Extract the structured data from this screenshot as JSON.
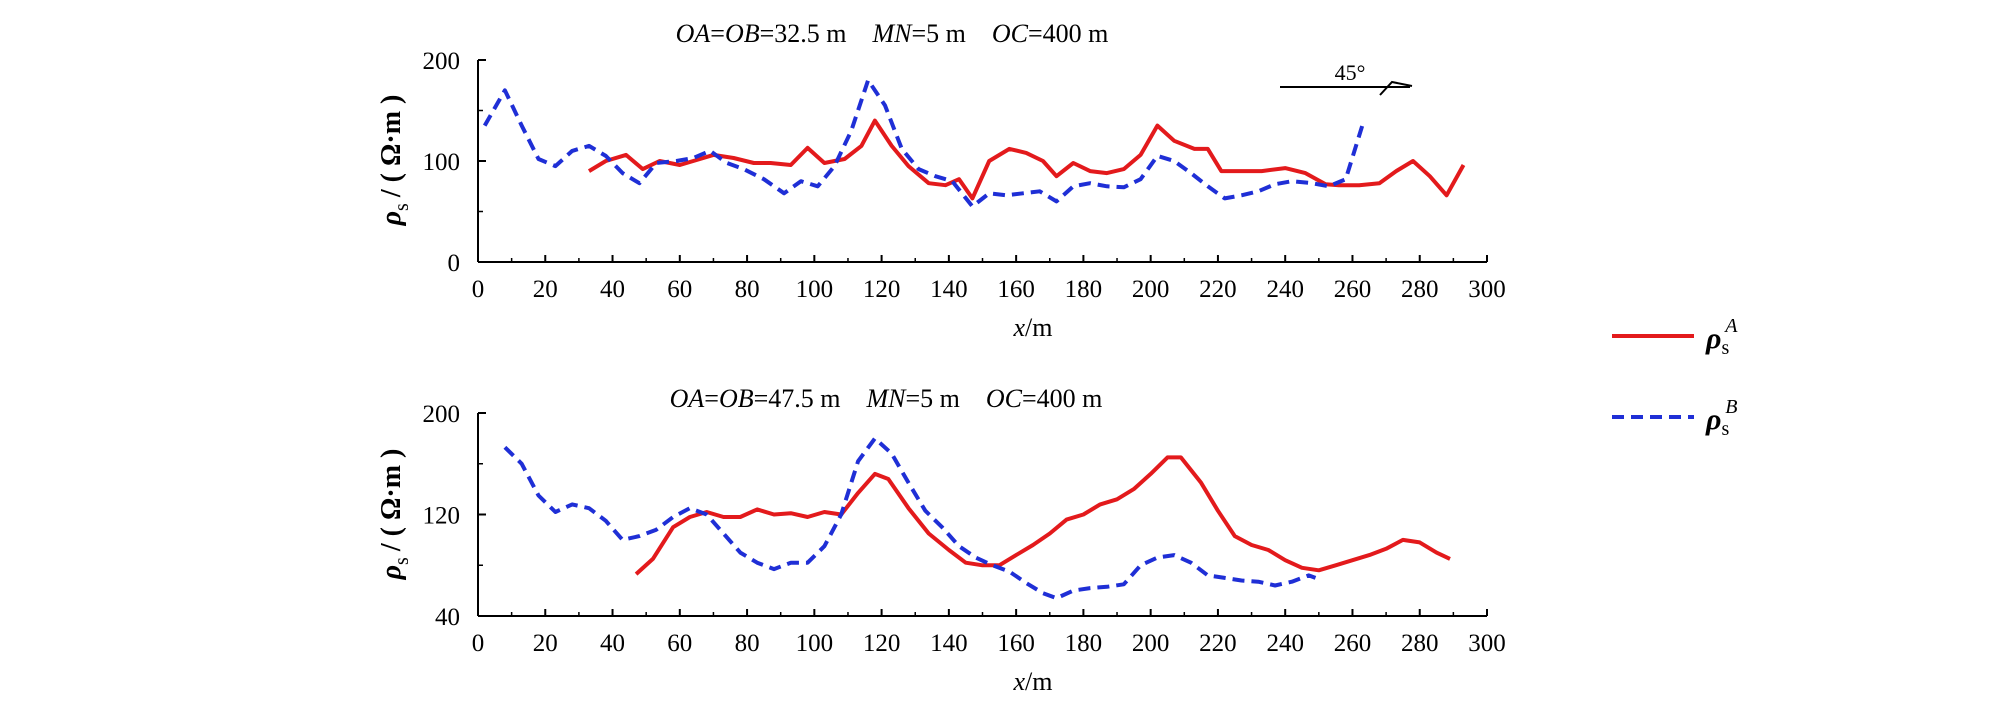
{
  "colors": {
    "A": "#e31a1c",
    "B": "#1f2fd6"
  },
  "legend": {
    "a_symbol": "ρ",
    "a_sub": "s",
    "a_sup": "A",
    "b_symbol": "ρ",
    "b_sub": "s",
    "b_sup": "B"
  },
  "compass": {
    "label": "45°"
  },
  "chart_data": [
    {
      "type": "line",
      "title_parts": {
        "oa": "OA",
        "eq1": "=",
        "ob": "OB",
        "eq2": "=32.5 m",
        "mn": "MN",
        "eq3": "=5 m",
        "oc": "OC",
        "eq4": "=400 m"
      },
      "xlabel_var": "x",
      "xlabel_unit": "/m",
      "ylabel": "ρs / ( Ω·m )",
      "ylabel_parts": {
        "rho": "ρ",
        "sub": "s",
        "unit": "/ ( Ω·m )"
      },
      "xlim": [
        0,
        300
      ],
      "ylim": [
        0,
        200
      ],
      "xticks": [
        0,
        20,
        40,
        60,
        80,
        100,
        120,
        140,
        160,
        180,
        200,
        220,
        240,
        260,
        280,
        300
      ],
      "yticks": [
        0,
        100,
        200
      ],
      "series": [
        {
          "key": "A",
          "style": "solid",
          "points": [
            [
              33,
              90
            ],
            [
              38,
              100
            ],
            [
              44,
              106
            ],
            [
              49,
              92
            ],
            [
              54,
              100
            ],
            [
              60,
              96
            ],
            [
              65,
              101
            ],
            [
              70,
              106
            ],
            [
              76,
              103
            ],
            [
              82,
              98
            ],
            [
              87,
              98
            ],
            [
              93,
              96
            ],
            [
              98,
              113
            ],
            [
              103,
              98
            ],
            [
              109,
              102
            ],
            [
              114,
              115
            ],
            [
              118,
              140
            ],
            [
              123,
              115
            ],
            [
              128,
              95
            ],
            [
              134,
              78
            ],
            [
              139,
              76
            ],
            [
              143,
              82
            ],
            [
              147,
              63
            ],
            [
              152,
              100
            ],
            [
              158,
              112
            ],
            [
              163,
              108
            ],
            [
              168,
              100
            ],
            [
              172,
              85
            ],
            [
              177,
              98
            ],
            [
              182,
              90
            ],
            [
              187,
              88
            ],
            [
              192,
              92
            ],
            [
              197,
              106
            ],
            [
              202,
              135
            ],
            [
              207,
              120
            ],
            [
              213,
              112
            ],
            [
              217,
              112
            ],
            [
              221,
              90
            ],
            [
              226,
              90
            ],
            [
              233,
              90
            ],
            [
              240,
              93
            ],
            [
              246,
              88
            ],
            [
              252,
              77
            ],
            [
              256,
              76
            ],
            [
              262,
              76
            ],
            [
              268,
              78
            ],
            [
              273,
              90
            ],
            [
              278,
              100
            ],
            [
              283,
              85
            ],
            [
              288,
              66
            ],
            [
              293,
              96
            ]
          ]
        },
        {
          "key": "B",
          "style": "dashed",
          "points": [
            [
              2,
              135
            ],
            [
              8,
              170
            ],
            [
              13,
              135
            ],
            [
              18,
              102
            ],
            [
              23,
              95
            ],
            [
              28,
              110
            ],
            [
              33,
              115
            ],
            [
              38,
              105
            ],
            [
              43,
              88
            ],
            [
              48,
              78
            ],
            [
              53,
              98
            ],
            [
              59,
              100
            ],
            [
              64,
              103
            ],
            [
              69,
              110
            ],
            [
              74,
              98
            ],
            [
              79,
              92
            ],
            [
              85,
              82
            ],
            [
              91,
              68
            ],
            [
              96,
              80
            ],
            [
              101,
              75
            ],
            [
              106,
              95
            ],
            [
              111,
              130
            ],
            [
              116,
              180
            ],
            [
              121,
              155
            ],
            [
              126,
              112
            ],
            [
              131,
              92
            ],
            [
              136,
              85
            ],
            [
              141,
              80
            ],
            [
              147,
              55
            ],
            [
              152,
              68
            ],
            [
              157,
              66
            ],
            [
              162,
              68
            ],
            [
              167,
              70
            ],
            [
              172,
              60
            ],
            [
              177,
              75
            ],
            [
              182,
              78
            ],
            [
              187,
              75
            ],
            [
              192,
              74
            ],
            [
              197,
              82
            ],
            [
              202,
              105
            ],
            [
              207,
              100
            ],
            [
              212,
              88
            ],
            [
              217,
              75
            ],
            [
              222,
              63
            ],
            [
              227,
              66
            ],
            [
              232,
              70
            ],
            [
              237,
              77
            ],
            [
              242,
              80
            ],
            [
              248,
              78
            ],
            [
              253,
              75
            ],
            [
              258,
              82
            ],
            [
              263,
              136
            ]
          ]
        }
      ]
    },
    {
      "type": "line",
      "title_parts": {
        "oa": "OA",
        "eq1": "=",
        "ob": "OB",
        "eq2": "=47.5 m",
        "mn": "MN",
        "eq3": "=5 m",
        "oc": "OC",
        "eq4": "=400 m"
      },
      "xlabel_var": "x",
      "xlabel_unit": "/m",
      "ylabel": "ρs / ( Ω·m )",
      "ylabel_parts": {
        "rho": "ρ",
        "sub": "s",
        "unit": "/ ( Ω·m )"
      },
      "xlim": [
        0,
        300
      ],
      "ylim": [
        40,
        200
      ],
      "xticks": [
        0,
        20,
        40,
        60,
        80,
        100,
        120,
        140,
        160,
        180,
        200,
        220,
        240,
        260,
        280,
        300
      ],
      "yticks": [
        40,
        120,
        200
      ],
      "series": [
        {
          "key": "A",
          "style": "solid",
          "points": [
            [
              47,
              73
            ],
            [
              52,
              85
            ],
            [
              58,
              110
            ],
            [
              63,
              118
            ],
            [
              68,
              122
            ],
            [
              73,
              118
            ],
            [
              78,
              118
            ],
            [
              83,
              124
            ],
            [
              88,
              120
            ],
            [
              93,
              121
            ],
            [
              98,
              118
            ],
            [
              103,
              122
            ],
            [
              108,
              120
            ],
            [
              113,
              137
            ],
            [
              118,
              152
            ],
            [
              122,
              148
            ],
            [
              128,
              125
            ],
            [
              134,
              105
            ],
            [
              140,
              92
            ],
            [
              145,
              82
            ],
            [
              150,
              80
            ],
            [
              155,
              80
            ],
            [
              160,
              88
            ],
            [
              165,
              96
            ],
            [
              170,
              105
            ],
            [
              175,
              116
            ],
            [
              180,
              120
            ],
            [
              185,
              128
            ],
            [
              190,
              132
            ],
            [
              195,
              140
            ],
            [
              200,
              152
            ],
            [
              205,
              165
            ],
            [
              209,
              165
            ],
            [
              215,
              145
            ],
            [
              220,
              123
            ],
            [
              225,
              103
            ],
            [
              230,
              96
            ],
            [
              235,
              92
            ],
            [
              240,
              84
            ],
            [
              245,
              78
            ],
            [
              250,
              76
            ],
            [
              255,
              80
            ],
            [
              260,
              84
            ],
            [
              265,
              88
            ],
            [
              270,
              93
            ],
            [
              275,
              100
            ],
            [
              280,
              98
            ],
            [
              285,
              90
            ],
            [
              289,
              85
            ]
          ]
        },
        {
          "key": "B",
          "style": "dashed",
          "points": [
            [
              8,
              173
            ],
            [
              13,
              160
            ],
            [
              18,
              135
            ],
            [
              23,
              122
            ],
            [
              28,
              128
            ],
            [
              33,
              125
            ],
            [
              38,
              115
            ],
            [
              43,
              100
            ],
            [
              48,
              103
            ],
            [
              53,
              108
            ],
            [
              58,
              118
            ],
            [
              63,
              125
            ],
            [
              68,
              120
            ],
            [
              73,
              105
            ],
            [
              78,
              90
            ],
            [
              83,
              82
            ],
            [
              88,
              77
            ],
            [
              93,
              82
            ],
            [
              98,
              82
            ],
            [
              103,
              95
            ],
            [
              108,
              120
            ],
            [
              113,
              162
            ],
            [
              118,
              180
            ],
            [
              123,
              168
            ],
            [
              128,
              145
            ],
            [
              133,
              123
            ],
            [
              138,
              110
            ],
            [
              143,
              95
            ],
            [
              148,
              86
            ],
            [
              153,
              80
            ],
            [
              158,
              75
            ],
            [
              163,
              66
            ],
            [
              168,
              58
            ],
            [
              172,
              54
            ],
            [
              177,
              60
            ],
            [
              182,
              62
            ],
            [
              187,
              63
            ],
            [
              192,
              65
            ],
            [
              197,
              80
            ],
            [
              202,
              86
            ],
            [
              207,
              88
            ],
            [
              212,
              82
            ],
            [
              217,
              72
            ],
            [
              222,
              70
            ],
            [
              227,
              68
            ],
            [
              232,
              67
            ],
            [
              237,
              64
            ],
            [
              242,
              67
            ],
            [
              247,
              72
            ],
            [
              249,
              70
            ]
          ]
        }
      ]
    }
  ]
}
